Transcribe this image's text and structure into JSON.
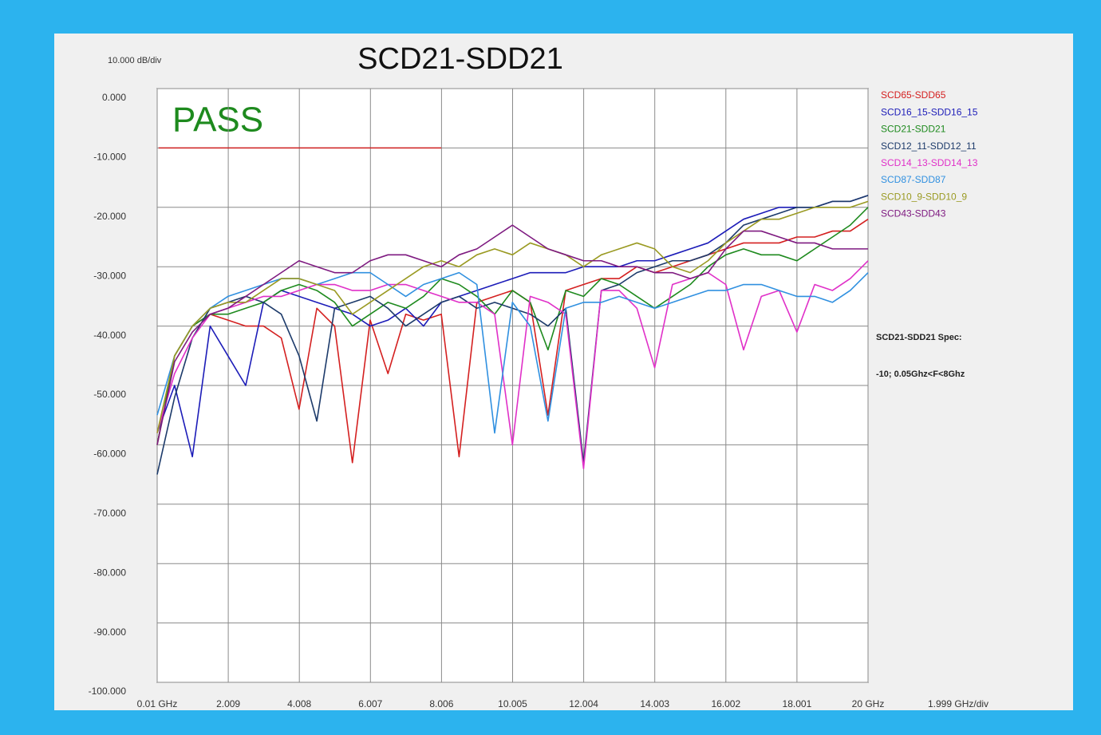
{
  "chart_data": {
    "type": "line",
    "title": "SCD21-SDD21",
    "y_unit_label": "10.000 dB/div",
    "x_unit_label": "1.999 GHz/div",
    "annotations": [
      "PASS",
      "SCD21-SDD21 Spec:",
      "-10; 0.05Ghz<F<8Ghz"
    ],
    "spec_line": {
      "color": "#d02020",
      "x": [
        0.05,
        8
      ],
      "y": [
        -10,
        -10
      ]
    },
    "grid": true,
    "legend": "right",
    "xlim": [
      0.01,
      20
    ],
    "ylim": [
      -100,
      0
    ],
    "xticks": [
      {
        "value": 0.01,
        "label": "0.01 GHz"
      },
      2.009,
      4.008,
      6.007,
      8.006,
      10.005,
      12.004,
      14.003,
      16.002,
      18.001,
      {
        "value": 20,
        "label": "20 GHz"
      }
    ],
    "yticks": [
      {
        "value": 0,
        "label": "0.000"
      },
      {
        "value": -10,
        "label": "-10.000"
      },
      {
        "value": -20,
        "label": "-20.000"
      },
      {
        "value": -30,
        "label": "-30.000"
      },
      {
        "value": -40,
        "label": "-40.000"
      },
      {
        "value": -50,
        "label": "-50.000"
      },
      {
        "value": -60,
        "label": "-60.000"
      },
      {
        "value": -70,
        "label": "-70.000"
      },
      {
        "value": -80,
        "label": "-80.000"
      },
      {
        "value": -90,
        "label": "-90.000"
      },
      {
        "value": -100,
        "label": "-100.000"
      }
    ],
    "x": [
      0.01,
      0.5,
      1,
      1.5,
      2,
      2.5,
      3,
      3.5,
      4,
      4.5,
      5,
      5.5,
      6,
      6.5,
      7,
      7.5,
      8,
      8.5,
      9,
      9.5,
      10,
      10.5,
      11,
      11.5,
      12,
      12.5,
      13,
      13.5,
      14,
      14.5,
      15,
      15.5,
      16,
      16.5,
      17,
      17.5,
      18,
      18.5,
      19,
      19.5,
      20
    ],
    "series": [
      {
        "name": "SCD65-SDD65",
        "color": "#d42020",
        "values": [
          -60,
          -45,
          -40,
          -38,
          -39,
          -40,
          -40,
          -42,
          -54,
          -37,
          -40,
          -63,
          -39,
          -48,
          -38,
          -39,
          -38,
          -62,
          -36,
          -35,
          -34,
          -36,
          -55,
          -34,
          -33,
          -32,
          -32,
          -30,
          -31,
          -30,
          -29,
          -28,
          -27,
          -26,
          -26,
          -26,
          -25,
          -25,
          -24,
          -24,
          -22
        ]
      },
      {
        "name": "SCD16_15-SDD16_15",
        "color": "#1c1cb8",
        "values": [
          -58,
          -50,
          -62,
          -40,
          -45,
          -50,
          -36,
          -34,
          -35,
          -36,
          -37,
          -38,
          -40,
          -39,
          -37,
          -40,
          -36,
          -35,
          -34,
          -33,
          -32,
          -31,
          -31,
          -31,
          -30,
          -30,
          -30,
          -29,
          -29,
          -28,
          -27,
          -26,
          -24,
          -22,
          -21,
          -20,
          -20,
          -20,
          -19,
          -19,
          -18
        ]
      },
      {
        "name": "SCD21-SDD21",
        "color": "#1e8a1e",
        "values": [
          -60,
          -45,
          -40,
          -38,
          -38,
          -37,
          -36,
          -34,
          -33,
          -34,
          -36,
          -40,
          -38,
          -36,
          -37,
          -35,
          -32,
          -33,
          -35,
          -38,
          -34,
          -36,
          -44,
          -34,
          -35,
          -32,
          -33,
          -35,
          -37,
          -35,
          -33,
          -30,
          -28,
          -27,
          -28,
          -28,
          -29,
          -27,
          -25,
          -23,
          -20
        ]
      },
      {
        "name": "SCD12_11-SDD12_11",
        "color": "#1c3a6a",
        "values": [
          -65,
          -52,
          -42,
          -37,
          -36,
          -35,
          -36,
          -38,
          -45,
          -56,
          -37,
          -36,
          -35,
          -37,
          -40,
          -38,
          -36,
          -35,
          -37,
          -36,
          -37,
          -38,
          -40,
          -37,
          -63,
          -34,
          -33,
          -31,
          -30,
          -29,
          -29,
          -28,
          -26,
          -23,
          -22,
          -21,
          -20,
          -20,
          -19,
          -19,
          -18
        ]
      },
      {
        "name": "SCD14_13-SDD14_13",
        "color": "#e030c8",
        "values": [
          -58,
          -48,
          -42,
          -38,
          -37,
          -36,
          -35,
          -35,
          -34,
          -33,
          -33,
          -34,
          -34,
          -33,
          -33,
          -34,
          -35,
          -36,
          -36,
          -38,
          -60,
          -35,
          -36,
          -38,
          -64,
          -34,
          -34,
          -37,
          -47,
          -33,
          -32,
          -31,
          -33,
          -44,
          -35,
          -34,
          -41,
          -33,
          -34,
          -32,
          -29
        ]
      },
      {
        "name": "SCD87-SDD87",
        "color": "#3090e0",
        "values": [
          -55,
          -45,
          -40,
          -37,
          -35,
          -34,
          -33,
          -32,
          -32,
          -33,
          -32,
          -31,
          -31,
          -33,
          -35,
          -33,
          -32,
          -31,
          -33,
          -58,
          -36,
          -40,
          -56,
          -37,
          -36,
          -36,
          -35,
          -36,
          -37,
          -36,
          -35,
          -34,
          -34,
          -33,
          -33,
          -34,
          -35,
          -35,
          -36,
          -34,
          -31
        ]
      },
      {
        "name": "SCD10_9-SDD10_9",
        "color": "#9a9a22",
        "values": [
          -58,
          -45,
          -40,
          -37,
          -36,
          -36,
          -34,
          -32,
          -32,
          -33,
          -34,
          -38,
          -36,
          -34,
          -32,
          -30,
          -29,
          -30,
          -28,
          -27,
          -28,
          -26,
          -27,
          -28,
          -30,
          -28,
          -27,
          -26,
          -27,
          -30,
          -31,
          -29,
          -26,
          -24,
          -22,
          -22,
          -21,
          -20,
          -20,
          -20,
          -19
        ]
      },
      {
        "name": "SCD43-SDD43",
        "color": "#7e1a80",
        "values": [
          -60,
          -46,
          -41,
          -38,
          -37,
          -35,
          -33,
          -31,
          -29,
          -30,
          -31,
          -31,
          -29,
          -28,
          -28,
          -29,
          -30,
          -28,
          -27,
          -25,
          -23,
          -25,
          -27,
          -28,
          -29,
          -29,
          -30,
          -30,
          -31,
          -31,
          -32,
          -31,
          -27,
          -24,
          -24,
          -25,
          -26,
          -26,
          -27,
          -27,
          -27
        ]
      }
    ]
  }
}
